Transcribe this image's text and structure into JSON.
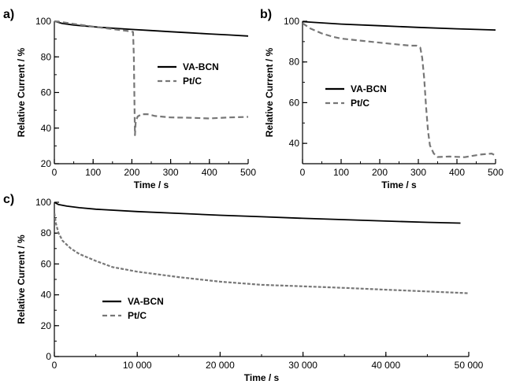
{
  "chart_data": [
    {
      "panel": "a)",
      "type": "line",
      "xlabel": "Time / s",
      "ylabel": "Relative Current / %",
      "xlim": [
        0,
        500
      ],
      "ylim": [
        20,
        100
      ],
      "xticks": [
        0,
        100,
        200,
        300,
        400,
        500
      ],
      "yticks": [
        20,
        40,
        60,
        80,
        100
      ],
      "legend_position": "center-right",
      "series": [
        {
          "name": "VA-BCN",
          "style": "solid",
          "color": "#000000",
          "x": [
            0,
            20,
            50,
            100,
            150,
            200,
            250,
            300,
            350,
            400,
            450,
            500
          ],
          "y": [
            100,
            98.8,
            97.9,
            96.9,
            96.1,
            95.4,
            94.8,
            94.1,
            93.5,
            92.9,
            92.3,
            91.7
          ]
        },
        {
          "name": "Pt/C",
          "style": "dashed",
          "color": "#777777",
          "x": [
            0,
            20,
            50,
            100,
            150,
            190,
            203,
            205,
            207,
            208,
            210,
            215,
            225,
            240,
            260,
            300,
            350,
            400,
            450,
            500
          ],
          "y": [
            100,
            99.5,
            98.5,
            97,
            95.6,
            94.5,
            94,
            80,
            50,
            36,
            44,
            46.5,
            47.8,
            47.8,
            46.8,
            46,
            45.8,
            45.4,
            46,
            46.3
          ]
        }
      ]
    },
    {
      "panel": "b)",
      "type": "line",
      "xlabel": "Time / s",
      "ylabel": "Relative Current / %",
      "xlim": [
        0,
        500
      ],
      "ylim": [
        30,
        100
      ],
      "xticks": [
        0,
        100,
        200,
        300,
        400,
        500
      ],
      "yticks": [
        40,
        60,
        80,
        100
      ],
      "legend_position": "center-left",
      "series": [
        {
          "name": "VA-BCN",
          "style": "solid",
          "color": "#000000",
          "x": [
            0,
            100,
            200,
            300,
            400,
            500
          ],
          "y": [
            99.8,
            98.6,
            97.8,
            97,
            96.3,
            95.7
          ]
        },
        {
          "name": "Pt/C",
          "style": "dashed",
          "color": "#777777",
          "x": [
            0,
            20,
            50,
            80,
            100,
            150,
            200,
            250,
            280,
            295,
            305,
            310,
            315,
            320,
            325,
            330,
            340,
            350,
            380,
            420,
            460,
            490,
            500
          ],
          "y": [
            99,
            96.5,
            94,
            92.3,
            91.5,
            90.5,
            89.5,
            88.5,
            88,
            88,
            87,
            82,
            72,
            58,
            46,
            39,
            35,
            33.3,
            33.5,
            33.2,
            34.5,
            35,
            34
          ]
        }
      ]
    },
    {
      "panel": "c)",
      "type": "line",
      "xlabel": "Time / s",
      "ylabel": "Relative Current / %",
      "xlim": [
        0,
        50000
      ],
      "ylim": [
        0,
        100
      ],
      "xticks": [
        0,
        10000,
        20000,
        30000,
        40000,
        50000
      ],
      "xtick_labels": [
        "0",
        "10 000",
        "20 000",
        "30 000",
        "40 000",
        "50 000"
      ],
      "yticks": [
        0,
        20,
        40,
        60,
        80,
        100
      ],
      "legend_position": "center-left",
      "series": [
        {
          "name": "VA-BCN",
          "style": "solid",
          "color": "#000000",
          "x": [
            0,
            500,
            1500,
            3000,
            5000,
            10000,
            15000,
            20000,
            25000,
            30000,
            35000,
            40000,
            45000,
            49000
          ],
          "y": [
            100,
            98.5,
            97.5,
            96.5,
            95.5,
            94,
            92.8,
            91.6,
            90.6,
            89.6,
            88.7,
            87.8,
            87,
            86.5
          ]
        },
        {
          "name": "Pt/C",
          "style": "dashed",
          "color": "#777777",
          "x": [
            0,
            200,
            500,
            1000,
            2000,
            3000,
            5000,
            7000,
            10000,
            15000,
            20000,
            25000,
            30000,
            35000,
            40000,
            45000,
            50000
          ],
          "y": [
            93,
            86,
            80,
            75,
            70,
            66.5,
            62,
            58,
            55,
            51.5,
            48.5,
            46.5,
            45.5,
            44.5,
            43.3,
            42.2,
            41
          ]
        }
      ]
    }
  ]
}
